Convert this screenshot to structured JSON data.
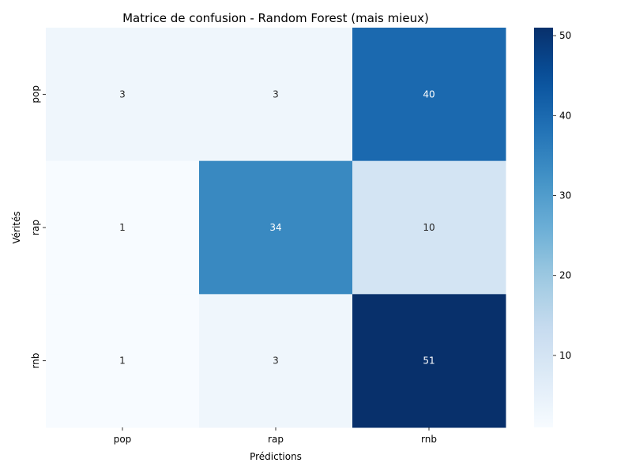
{
  "chart_data": {
    "type": "heatmap",
    "title": "Matrice de confusion - Random Forest (mais mieux)",
    "xlabel": "Prédictions",
    "ylabel": "Vérités",
    "x_categories": [
      "pop",
      "rap",
      "rnb"
    ],
    "y_categories": [
      "pop",
      "rap",
      "rnb"
    ],
    "values": [
      [
        3,
        3,
        40
      ],
      [
        1,
        34,
        10
      ],
      [
        1,
        3,
        51
      ]
    ],
    "colorbar": {
      "range": [
        1,
        51
      ],
      "ticks": [
        10,
        20,
        30,
        40,
        50
      ],
      "colormap": "Blues"
    }
  }
}
